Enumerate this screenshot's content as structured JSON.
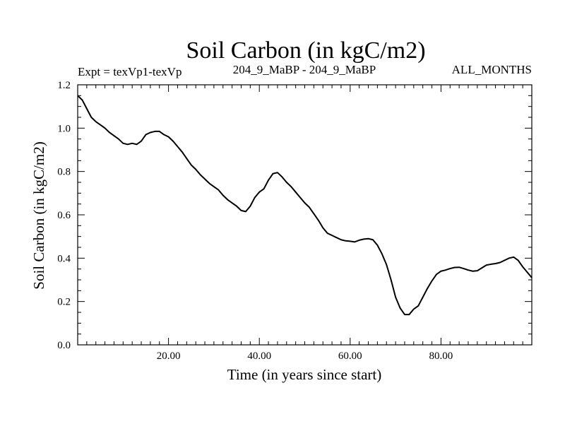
{
  "chart_data": {
    "type": "line",
    "title": "Soil Carbon (in kgC/m2)",
    "subtitle_left": "Expt = texVp1-texVp",
    "subtitle_center": "204_9_MaBP - 204_9_MaBP",
    "subtitle_right": "ALL_MONTHS",
    "xlabel": "Time (in years since start)",
    "ylabel": "Soil Carbon (in kgC/m2)",
    "xlim": [
      0,
      100
    ],
    "ylim": [
      0,
      1.2
    ],
    "xticks": [
      20,
      40,
      60,
      80
    ],
    "xtick_labels": [
      "20.00",
      "40.00",
      "60.00",
      "80.00"
    ],
    "yticks": [
      0,
      0.2,
      0.4,
      0.6,
      0.8,
      1.0,
      1.2
    ],
    "ytick_labels": [
      "0.0",
      "0.2",
      "0.4",
      "0.6",
      "0.8",
      "1.0",
      "1.2"
    ],
    "grid": false,
    "series": [
      {
        "x": [
          0,
          1,
          2,
          3,
          4,
          5,
          6,
          7,
          8,
          9,
          10,
          11,
          12,
          13,
          14,
          15,
          16,
          17,
          18,
          19,
          20,
          21,
          22,
          23,
          24,
          25,
          26,
          27,
          28,
          29,
          30,
          31,
          32,
          33,
          34,
          35,
          36,
          37,
          38,
          39,
          40,
          41,
          42,
          43,
          44,
          45,
          46,
          47,
          48,
          49,
          50,
          51,
          52,
          53,
          54,
          55,
          56,
          57,
          58,
          59,
          60,
          61,
          62,
          63,
          64,
          65,
          66,
          67,
          68,
          69,
          70,
          71,
          72,
          73,
          74,
          75,
          76,
          77,
          78,
          79,
          80,
          81,
          82,
          83,
          84,
          85,
          86,
          87,
          88,
          89,
          90,
          91,
          92,
          93,
          94,
          95,
          96,
          97,
          98,
          99,
          100
        ],
        "values": [
          1.15,
          1.13,
          1.09,
          1.05,
          1.03,
          1.015,
          1.0,
          0.98,
          0.965,
          0.95,
          0.93,
          0.925,
          0.93,
          0.925,
          0.94,
          0.97,
          0.98,
          0.985,
          0.985,
          0.97,
          0.96,
          0.94,
          0.915,
          0.89,
          0.86,
          0.83,
          0.81,
          0.785,
          0.765,
          0.745,
          0.73,
          0.715,
          0.69,
          0.67,
          0.655,
          0.64,
          0.62,
          0.615,
          0.64,
          0.68,
          0.705,
          0.72,
          0.76,
          0.79,
          0.795,
          0.775,
          0.75,
          0.73,
          0.705,
          0.68,
          0.655,
          0.635,
          0.605,
          0.575,
          0.54,
          0.515,
          0.505,
          0.495,
          0.485,
          0.48,
          0.478,
          0.475,
          0.483,
          0.488,
          0.49,
          0.485,
          0.46,
          0.42,
          0.37,
          0.3,
          0.22,
          0.17,
          0.14,
          0.14,
          0.165,
          0.18,
          0.22,
          0.26,
          0.295,
          0.325,
          0.34,
          0.345,
          0.352,
          0.357,
          0.358,
          0.352,
          0.345,
          0.34,
          0.342,
          0.355,
          0.368,
          0.372,
          0.375,
          0.38,
          0.39,
          0.4,
          0.405,
          0.39,
          0.36,
          0.335,
          0.31
        ]
      }
    ]
  }
}
